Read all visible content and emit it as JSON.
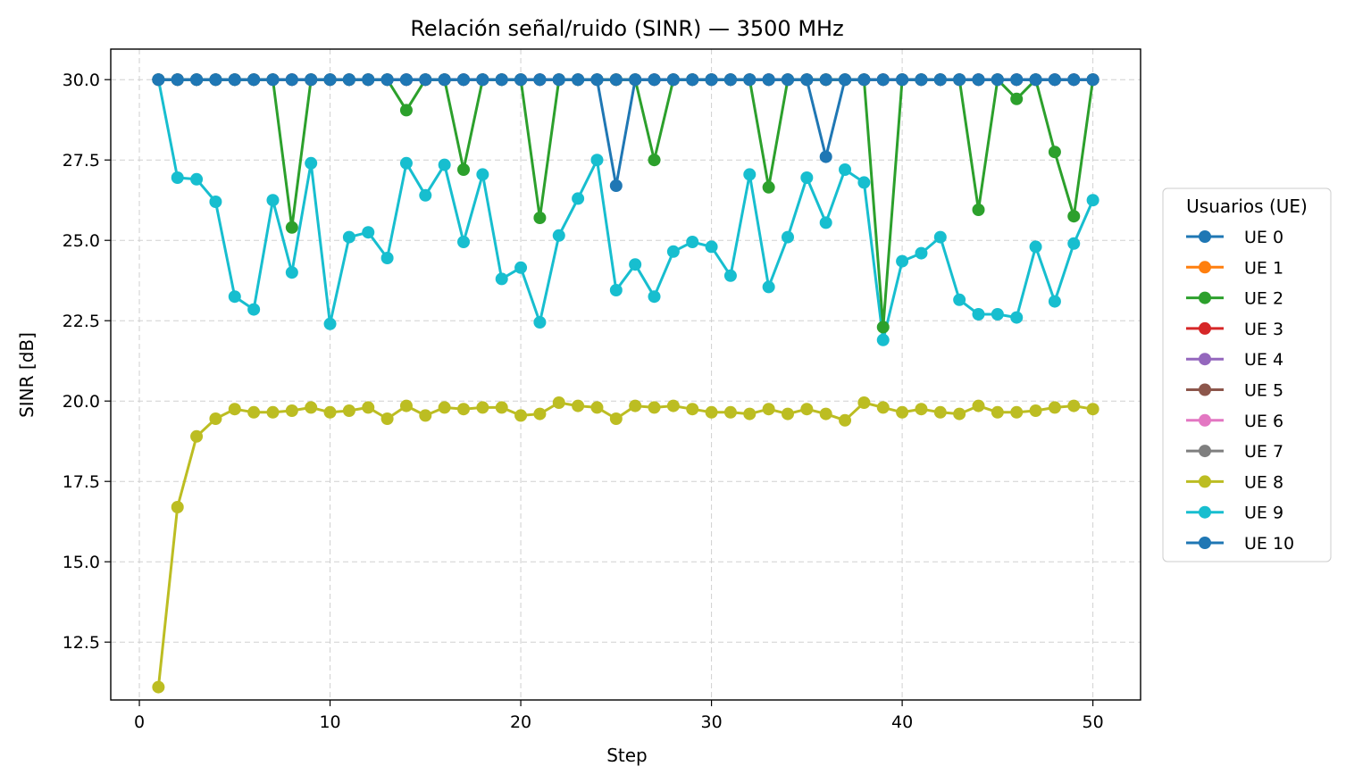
{
  "chart_data": {
    "type": "line",
    "title": "Relación señal/ruido (SINR) — 3500 MHz",
    "xlabel": "Step",
    "ylabel": "SINR [dB]",
    "xlim": [
      -1.5,
      52.5
    ],
    "ylim": [
      10.7,
      30.95
    ],
    "xticks": [
      0,
      10,
      20,
      30,
      40,
      50
    ],
    "yticks": [
      12.5,
      15.0,
      17.5,
      20.0,
      22.5,
      25.0,
      27.5,
      30.0
    ],
    "grid": true,
    "legend": {
      "title": "Usuarios (UE)",
      "placement": "right"
    },
    "x": [
      1,
      2,
      3,
      4,
      5,
      6,
      7,
      8,
      9,
      10,
      11,
      12,
      13,
      14,
      15,
      16,
      17,
      18,
      19,
      20,
      21,
      22,
      23,
      24,
      25,
      26,
      27,
      28,
      29,
      30,
      31,
      32,
      33,
      34,
      35,
      36,
      37,
      38,
      39,
      40,
      41,
      42,
      43,
      44,
      45,
      46,
      47,
      48,
      49,
      50
    ],
    "series": [
      {
        "name": "UE 1",
        "color": "#ff7f0e",
        "values": [
          30,
          30,
          30,
          30,
          30,
          30,
          30,
          30,
          30,
          30,
          30,
          30,
          30,
          30,
          30,
          30,
          30,
          30,
          30,
          30,
          30,
          30,
          30,
          30,
          30,
          30,
          30,
          30,
          30,
          30,
          30,
          30,
          30,
          30,
          30,
          30,
          30,
          30,
          30,
          30,
          30,
          30,
          30,
          30,
          30,
          30,
          30,
          30,
          30,
          30
        ]
      },
      {
        "name": "UE 3",
        "color": "#d62728",
        "values": [
          30,
          30,
          30,
          30,
          30,
          30,
          30,
          30,
          30,
          30,
          30,
          30,
          30,
          30,
          30,
          30,
          30,
          30,
          30,
          30,
          30,
          30,
          30,
          30,
          30,
          30,
          30,
          30,
          30,
          30,
          30,
          30,
          30,
          30,
          30,
          30,
          30,
          30,
          30,
          30,
          30,
          30,
          30,
          30,
          30,
          30,
          30,
          30,
          30,
          30
        ]
      },
      {
        "name": "UE 4",
        "color": "#9467bd",
        "values": [
          30,
          30,
          30,
          30,
          30,
          30,
          30,
          30,
          30,
          30,
          30,
          30,
          30,
          30,
          30,
          30,
          30,
          30,
          30,
          30,
          30,
          30,
          30,
          30,
          30,
          30,
          30,
          30,
          30,
          30,
          30,
          30,
          30,
          30,
          30,
          30,
          30,
          30,
          30,
          30,
          30,
          30,
          30,
          30,
          30,
          30,
          30,
          30,
          30,
          30
        ]
      },
      {
        "name": "UE 5",
        "color": "#8c564b",
        "values": [
          30,
          30,
          30,
          30,
          30,
          30,
          30,
          30,
          30,
          30,
          30,
          30,
          30,
          30,
          30,
          30,
          30,
          30,
          30,
          30,
          30,
          30,
          30,
          30,
          30,
          30,
          30,
          30,
          30,
          30,
          30,
          30,
          30,
          30,
          30,
          30,
          30,
          30,
          30,
          30,
          30,
          30,
          30,
          30,
          30,
          30,
          30,
          30,
          30,
          30
        ]
      },
      {
        "name": "UE 6",
        "color": "#e377c2",
        "values": [
          30,
          30,
          30,
          30,
          30,
          30,
          30,
          30,
          30,
          30,
          30,
          30,
          30,
          30,
          30,
          30,
          30,
          30,
          30,
          30,
          30,
          30,
          30,
          30,
          30,
          30,
          30,
          30,
          30,
          30,
          30,
          30,
          30,
          30,
          30,
          30,
          30,
          30,
          30,
          30,
          30,
          30,
          30,
          30,
          30,
          30,
          30,
          30,
          30,
          30
        ]
      },
      {
        "name": "UE 7",
        "color": "#7f7f7f",
        "values": [
          30,
          30,
          30,
          30,
          30,
          30,
          30,
          30,
          30,
          30,
          30,
          30,
          30,
          30,
          30,
          30,
          30,
          30,
          30,
          30,
          30,
          30,
          30,
          30,
          30,
          30,
          30,
          30,
          30,
          30,
          30,
          30,
          30,
          30,
          30,
          30,
          30,
          30,
          30,
          30,
          30,
          30,
          30,
          30,
          30,
          30,
          30,
          30,
          30,
          30
        ]
      },
      {
        "name": "UE 8",
        "color": "#bcbd22",
        "values": [
          11.1,
          16.7,
          18.9,
          19.45,
          19.75,
          19.65,
          19.65,
          19.7,
          19.8,
          19.65,
          19.7,
          19.8,
          19.45,
          19.85,
          19.55,
          19.8,
          19.75,
          19.8,
          19.8,
          19.55,
          19.6,
          19.95,
          19.85,
          19.8,
          19.45,
          19.85,
          19.8,
          19.85,
          19.75,
          19.65,
          19.65,
          19.6,
          19.75,
          19.6,
          19.75,
          19.6,
          19.4,
          19.95,
          19.8,
          19.65,
          19.75,
          19.65,
          19.6,
          19.85,
          19.65,
          19.65,
          19.7,
          19.8,
          19.85,
          19.75
        ]
      },
      {
        "name": "UE 9",
        "color": "#17becf",
        "values": [
          30,
          26.95,
          26.9,
          26.2,
          23.25,
          22.85,
          26.25,
          24.0,
          27.4,
          22.4,
          25.1,
          25.25,
          24.45,
          27.4,
          26.4,
          27.35,
          24.95,
          27.05,
          23.8,
          24.15,
          22.45,
          25.15,
          26.3,
          27.5,
          23.45,
          24.25,
          23.25,
          24.65,
          24.95,
          24.8,
          23.9,
          27.05,
          23.55,
          25.1,
          26.95,
          25.55,
          27.2,
          26.8,
          21.9,
          24.35,
          24.6,
          25.1,
          23.15,
          22.7,
          22.7,
          22.6,
          24.8,
          23.1,
          24.9,
          26.25
        ]
      },
      {
        "name": "UE 2",
        "color": "#2ca02c",
        "values": [
          30,
          30,
          30,
          30,
          30,
          30,
          30,
          25.4,
          30,
          30,
          30,
          30,
          30,
          29.05,
          30,
          30,
          27.2,
          30,
          30,
          30,
          25.7,
          30,
          30,
          30,
          30,
          30,
          27.5,
          30,
          30,
          30,
          30,
          30,
          26.65,
          30,
          30,
          30,
          30,
          30,
          22.3,
          30,
          30,
          30,
          30,
          25.95,
          30,
          29.4,
          30,
          27.75,
          25.75,
          30
        ]
      },
      {
        "name": "UE 10",
        "color": "#1f77b4",
        "values": [
          30,
          30,
          30,
          30,
          30,
          30,
          30,
          30,
          30,
          30,
          30,
          30,
          30,
          30,
          30,
          30,
          30,
          30,
          30,
          30,
          30,
          30,
          30,
          30,
          26.7,
          30,
          30,
          30,
          30,
          30,
          30,
          30,
          30,
          30,
          30,
          27.6,
          30,
          30,
          30,
          30,
          30,
          30,
          30,
          30,
          30,
          30,
          30,
          30,
          30,
          30
        ]
      },
      {
        "name": "UE 0",
        "color": "#1f77b4",
        "values": [
          30,
          30,
          30,
          30,
          30,
          30,
          30,
          30,
          30,
          30,
          30,
          30,
          30,
          30,
          30,
          30,
          30,
          30,
          30,
          30,
          30,
          30,
          30,
          30,
          30,
          30,
          30,
          30,
          30,
          30,
          30,
          30,
          30,
          30,
          30,
          30,
          30,
          30,
          30,
          30,
          30,
          30,
          30,
          30,
          30,
          30,
          30,
          30,
          30,
          30
        ]
      }
    ],
    "legend_order": [
      "UE 0",
      "UE 1",
      "UE 2",
      "UE 3",
      "UE 4",
      "UE 5",
      "UE 6",
      "UE 7",
      "UE 8",
      "UE 9",
      "UE 10"
    ]
  }
}
